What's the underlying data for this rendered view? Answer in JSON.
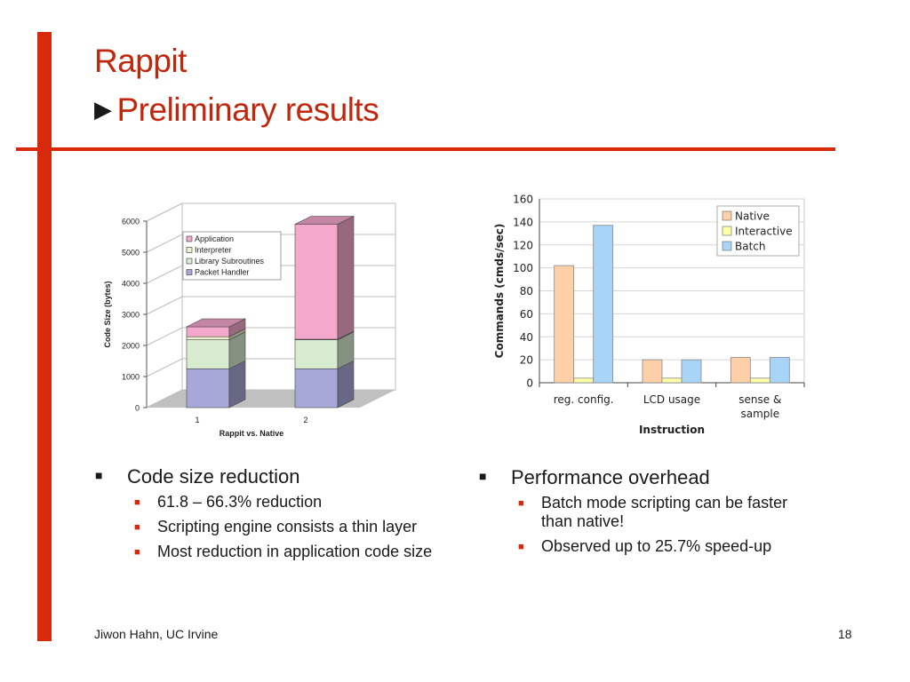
{
  "slide": {
    "title": "Rappit",
    "subtitle": "Preliminary results",
    "arrow_icon": "triangle-right-icon",
    "accent_color": "#d9290d"
  },
  "chart_data": [
    {
      "type": "bar",
      "stacked": true,
      "three_d": true,
      "categories": [
        "1",
        "2"
      ],
      "series": [
        {
          "name": "Packet Handler",
          "values": [
            1250,
            1250
          ],
          "color": "#a8a8d8"
        },
        {
          "name": "Library Subroutines",
          "values": [
            930,
            930
          ],
          "color": "#d8ecd0"
        },
        {
          "name": "Interpreter",
          "values": [
            100,
            20
          ],
          "color": "#f0f0d0"
        },
        {
          "name": "Application",
          "values": [
            320,
            3700
          ],
          "color": "#f4a8cc"
        }
      ],
      "xlabel": "Rappit vs. Native",
      "ylabel": "Code Size (bytes)",
      "yticks": [
        0,
        1000,
        2000,
        3000,
        4000,
        5000,
        6000
      ],
      "ylim": [
        0,
        6000
      ],
      "legend": "top-left"
    },
    {
      "type": "bar",
      "categories": [
        "reg. config.",
        "LCD usage",
        "sense & sample"
      ],
      "series": [
        {
          "name": "Native",
          "values": [
            102,
            20,
            22
          ],
          "color": "#fdd0a8"
        },
        {
          "name": "Interactive",
          "values": [
            4,
            4,
            4
          ],
          "color": "#ffffa8"
        },
        {
          "name": "Batch",
          "values": [
            137,
            20,
            22
          ],
          "color": "#a8d4f8"
        }
      ],
      "xlabel": "Instruction",
      "ylabel": "Commands (cmds/sec)",
      "yticks": [
        0,
        20,
        40,
        60,
        80,
        100,
        120,
        140,
        160
      ],
      "ylim": [
        0,
        160
      ],
      "legend": "top-right"
    }
  ],
  "left_column": {
    "heading": "Code size reduction",
    "items": [
      "61.8 – 66.3% reduction",
      "Scripting engine consists a thin layer",
      "Most reduction in application code size"
    ]
  },
  "right_column": {
    "heading": "Performance overhead",
    "items": [
      "Batch mode scripting can be faster than native!",
      "Observed up to 25.7% speed-up"
    ]
  },
  "footer": {
    "author": "Jiwon Hahn, UC Irvine",
    "page_number": "18"
  }
}
